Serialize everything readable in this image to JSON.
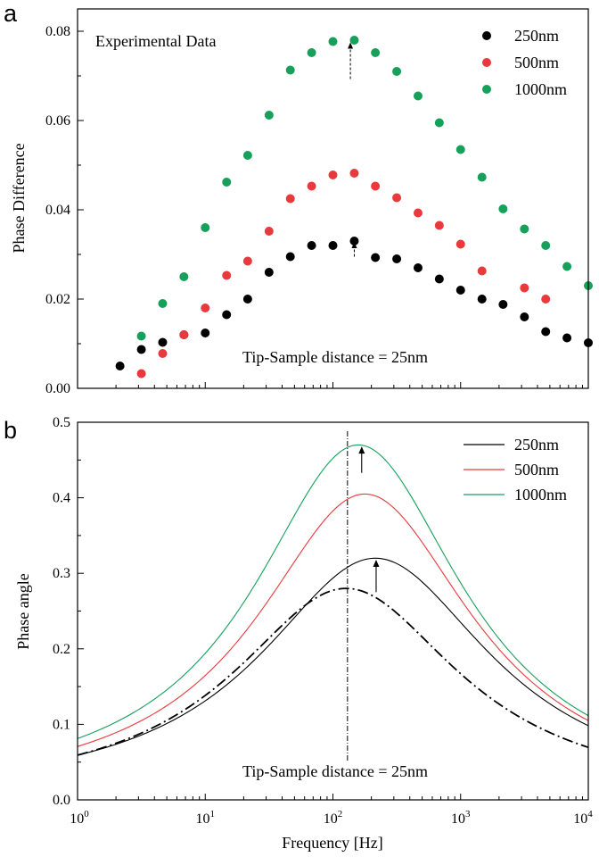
{
  "colors": {
    "s250": "#000000",
    "s500": "#e8393c",
    "s1000": "#16a05a",
    "axis": "#000000"
  },
  "chart_data": [
    {
      "panel_label": "a",
      "type": "scatter",
      "title": "",
      "xlabel": "",
      "ylabel": "Phase Difference",
      "xscale": "log",
      "xlim": [
        1,
        10000
      ],
      "ylim": [
        0,
        0.085
      ],
      "yticks": [
        "0.00",
        "0.02",
        "0.04",
        "0.06",
        "0.08"
      ],
      "annotation_title": "Experimental Data",
      "annotation_note": "Tip-Sample distance = 25nm",
      "legend_position": "top-right",
      "series": [
        {
          "name": "250nm",
          "x": [
            2.15,
            3.16,
            4.64,
            6.81,
            10,
            14.7,
            21.5,
            31.6,
            46.4,
            68.1,
            100,
            147,
            215,
            316,
            464,
            681,
            1000,
            1470,
            2150,
            3160,
            4640,
            6810,
            10000
          ],
          "y": [
            0.005,
            0.0087,
            0.0103,
            0.012,
            0.0124,
            0.0165,
            0.02,
            0.026,
            0.0295,
            0.032,
            0.032,
            0.033,
            0.0293,
            0.029,
            0.027,
            0.0245,
            0.022,
            0.02,
            0.0188,
            0.016,
            0.0127,
            0.0113,
            0.0102
          ]
        },
        {
          "name": "500nm",
          "x": [
            3.16,
            4.64,
            6.81,
            10,
            14.7,
            21.5,
            31.6,
            46.4,
            68.1,
            100,
            147,
            215,
            316,
            464,
            681,
            1000,
            1470,
            3160,
            4640
          ],
          "y": [
            0.0033,
            0.0078,
            0.012,
            0.018,
            0.0253,
            0.0285,
            0.0352,
            0.0425,
            0.0453,
            0.0478,
            0.0482,
            0.0453,
            0.0427,
            0.0393,
            0.0365,
            0.0323,
            0.0263,
            0.0225,
            0.02
          ]
        },
        {
          "name": "1000nm",
          "x": [
            3.16,
            4.64,
            6.81,
            10,
            14.7,
            21.5,
            31.6,
            46.4,
            68.1,
            100,
            147,
            215,
            316,
            464,
            681,
            1000,
            1470,
            2150,
            3160,
            4640,
            6810,
            10000
          ],
          "y": [
            0.0117,
            0.019,
            0.025,
            0.036,
            0.0462,
            0.0522,
            0.0612,
            0.0713,
            0.0752,
            0.0777,
            0.078,
            0.0752,
            0.071,
            0.0655,
            0.0595,
            0.0535,
            0.0473,
            0.0402,
            0.0357,
            0.032,
            0.0273,
            0.023
          ]
        }
      ],
      "arrows": [
        {
          "x": 147,
          "y_from": 0.0295,
          "y_to": 0.0328
        },
        {
          "x": 137,
          "y_from": 0.0693,
          "y_to": 0.0775
        }
      ]
    },
    {
      "panel_label": "b",
      "type": "line",
      "title": "",
      "xlabel": "Frequency [Hz]",
      "ylabel": "Phase angle",
      "xscale": "log",
      "xlim": [
        1,
        10000
      ],
      "ylim": [
        0,
        0.5
      ],
      "yticks": [
        "0.0",
        "0.1",
        "0.2",
        "0.3",
        "0.4",
        "0.5"
      ],
      "xticks": [
        {
          "base": "10",
          "exp": "0"
        },
        {
          "base": "10",
          "exp": "1"
        },
        {
          "base": "10",
          "exp": "2"
        },
        {
          "base": "10",
          "exp": "3"
        },
        {
          "base": "10",
          "exp": "4"
        }
      ],
      "annotation_note": "Tip-Sample distance = 25nm",
      "legend_position": "top-right",
      "series": [
        {
          "name": "250nm",
          "peak_x": 215,
          "peak_y": 0.32,
          "width": 1.11,
          "y_at_1": 0.025
        },
        {
          "name": "500nm",
          "peak_x": 178,
          "peak_y": 0.405,
          "width": 1.035,
          "y_at_1": 0.032
        },
        {
          "name": "1000nm",
          "peak_x": 158,
          "peak_y": 0.47,
          "width": 1.005,
          "y_at_1": 0.038
        },
        {
          "name": "",
          "style": "dash-dot",
          "peak_x": 127,
          "peak_y": 0.28,
          "width": 1.09,
          "y_at_1": 0.023
        }
      ],
      "vline_x": 130,
      "arrows": [
        {
          "x": 218,
          "y_from": 0.275,
          "y_to": 0.318
        },
        {
          "x": 168,
          "y_from": 0.433,
          "y_to": 0.468
        }
      ]
    }
  ]
}
